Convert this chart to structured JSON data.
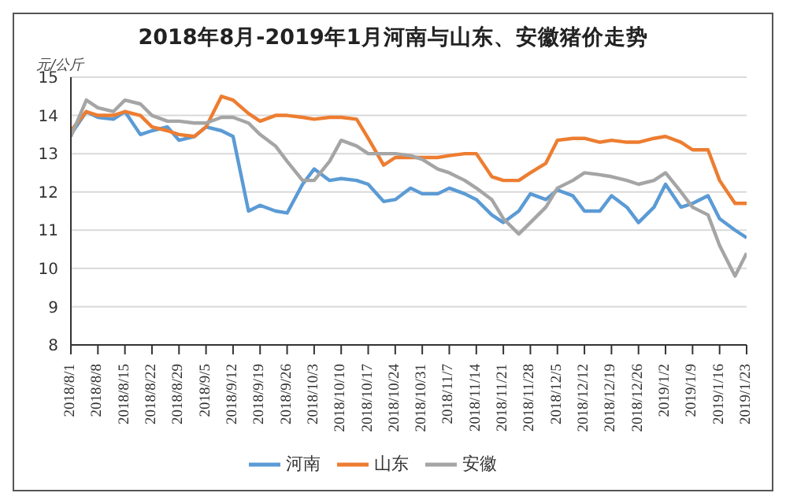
{
  "chart_data": {
    "type": "line",
    "title": "2018年8月-2019年1月河南与山东、安徽猪价走势",
    "ylabel": "元/公斤",
    "x": [
      "2018-08-01",
      "2018-08-05",
      "2018-08-08",
      "2018-08-12",
      "2018-08-15",
      "2018-08-19",
      "2018-08-22",
      "2018-08-26",
      "2018-08-29",
      "2018-09-02",
      "2018-09-05",
      "2018-09-09",
      "2018-09-12",
      "2018-09-16",
      "2018-09-19",
      "2018-09-23",
      "2018-09-26",
      "2018-09-30",
      "2018-10-03",
      "2018-10-07",
      "2018-10-10",
      "2018-10-14",
      "2018-10-17",
      "2018-10-21",
      "2018-10-24",
      "2018-10-28",
      "2018-10-31",
      "2018-11-04",
      "2018-11-07",
      "2018-11-11",
      "2018-11-14",
      "2018-11-18",
      "2018-11-21",
      "2018-11-25",
      "2018-11-28",
      "2018-12-02",
      "2018-12-05",
      "2018-12-09",
      "2018-12-12",
      "2018-12-16",
      "2018-12-19",
      "2018-12-23",
      "2018-12-26",
      "2018-12-30",
      "2019-01-02",
      "2019-01-06",
      "2019-01-09",
      "2019-01-13",
      "2019-01-16",
      "2019-01-20",
      "2019-01-23"
    ],
    "series": [
      {
        "name": "河南",
        "color": "#5b9bd5",
        "values": [
          13.5,
          14.1,
          13.95,
          13.9,
          14.1,
          13.5,
          13.6,
          13.7,
          13.35,
          13.45,
          13.7,
          13.6,
          13.45,
          11.5,
          11.65,
          11.5,
          11.45,
          12.2,
          12.6,
          12.3,
          12.35,
          12.3,
          12.2,
          11.75,
          11.8,
          12.1,
          11.95,
          11.95,
          12.1,
          11.95,
          11.8,
          11.4,
          11.2,
          11.5,
          11.95,
          11.8,
          12.05,
          11.9,
          11.5,
          11.5,
          11.9,
          11.6,
          11.2,
          11.6,
          12.2,
          11.6,
          11.7,
          11.9,
          11.3,
          11.0,
          10.8
        ]
      },
      {
        "name": "山东",
        "color": "#ed7d31",
        "values": [
          13.6,
          14.1,
          14.0,
          14.0,
          14.1,
          14.0,
          13.7,
          13.6,
          13.5,
          13.45,
          13.7,
          14.5,
          14.4,
          14.05,
          13.85,
          14.0,
          14.0,
          13.95,
          13.9,
          13.95,
          13.95,
          13.9,
          13.4,
          12.7,
          12.9,
          12.9,
          12.9,
          12.9,
          12.95,
          13.0,
          13.0,
          12.4,
          12.3,
          12.3,
          12.5,
          12.75,
          13.35,
          13.4,
          13.4,
          13.3,
          13.35,
          13.3,
          13.3,
          13.4,
          13.45,
          13.3,
          13.1,
          13.1,
          12.3,
          11.7,
          11.7
        ]
      },
      {
        "name": "安徽",
        "color": "#a5a5a5",
        "values": [
          13.45,
          14.4,
          14.2,
          14.1,
          14.4,
          14.3,
          14.0,
          13.85,
          13.85,
          13.8,
          13.8,
          13.95,
          13.95,
          13.8,
          13.5,
          13.2,
          12.8,
          12.3,
          12.3,
          12.8,
          13.35,
          13.2,
          13.0,
          13.0,
          13.0,
          12.95,
          12.85,
          12.6,
          12.5,
          12.3,
          12.1,
          11.8,
          11.3,
          10.9,
          11.2,
          11.6,
          12.1,
          12.3,
          12.5,
          12.45,
          12.4,
          12.3,
          12.2,
          12.3,
          12.5,
          12.0,
          11.6,
          11.4,
          10.6,
          9.8,
          10.4
        ]
      }
    ],
    "xlim": [
      "2018-08-01",
      "2019-01-23"
    ],
    "xticks": [
      {
        "value": "2018-08-01",
        "label": "2018/8/1"
      },
      {
        "value": "2018-08-08",
        "label": "2018/8/8"
      },
      {
        "value": "2018-08-15",
        "label": "2018/8/15"
      },
      {
        "value": "2018-08-22",
        "label": "2018/8/22"
      },
      {
        "value": "2018-08-29",
        "label": "2018/8/29"
      },
      {
        "value": "2018-09-05",
        "label": "2018/9/5"
      },
      {
        "value": "2018-09-12",
        "label": "2018/9/12"
      },
      {
        "value": "2018-09-19",
        "label": "2018/9/19"
      },
      {
        "value": "2018-09-26",
        "label": "2018/9/26"
      },
      {
        "value": "2018-10-03",
        "label": "2018/10/3"
      },
      {
        "value": "2018-10-10",
        "label": "2018/10/10"
      },
      {
        "value": "2018-10-17",
        "label": "2018/10/17"
      },
      {
        "value": "2018-10-24",
        "label": "2018/10/24"
      },
      {
        "value": "2018-10-31",
        "label": "2018/10/31"
      },
      {
        "value": "2018-11-07",
        "label": "2018/11/7"
      },
      {
        "value": "2018-11-14",
        "label": "2018/11/14"
      },
      {
        "value": "2018-11-21",
        "label": "2018/11/21"
      },
      {
        "value": "2018-11-28",
        "label": "2018/11/28"
      },
      {
        "value": "2018-12-05",
        "label": "2018/12/5"
      },
      {
        "value": "2018-12-12",
        "label": "2018/12/12"
      },
      {
        "value": "2018-12-19",
        "label": "2018/12/19"
      },
      {
        "value": "2018-12-26",
        "label": "2018/12/26"
      },
      {
        "value": "2019-01-02",
        "label": "2019/1/2"
      },
      {
        "value": "2019-01-09",
        "label": "2019/1/9"
      },
      {
        "value": "2019-01-16",
        "label": "2019/1/16"
      },
      {
        "value": "2019-01-23",
        "label": "2019/1/23"
      }
    ],
    "ylim": [
      8,
      15
    ],
    "yticks": [
      8,
      9,
      10,
      11,
      12,
      13,
      14,
      15
    ],
    "grid": "y",
    "legend": "bottom",
    "marker": "none",
    "line_style": "solid"
  }
}
